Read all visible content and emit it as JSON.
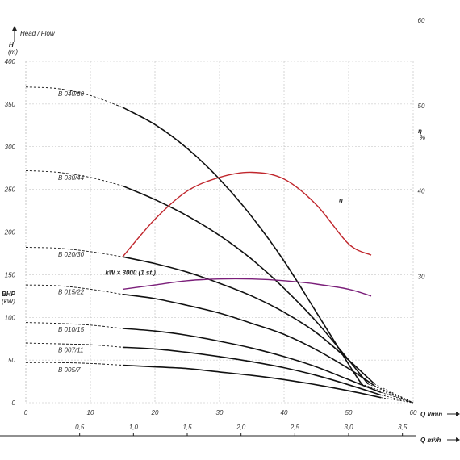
{
  "chart_data": {
    "type": "line",
    "title": "Head / Flow",
    "y_axis": {
      "label": "H",
      "unit": "(m)",
      "ylim": [
        0,
        400
      ],
      "ticks": [
        "0",
        "50",
        "100",
        "150",
        "200",
        "250",
        "300",
        "350",
        "400"
      ],
      "secondary_label": "BHP",
      "secondary_unit": "(kW)"
    },
    "x_axis_primary": {
      "label": "Q l/min",
      "xlim": [
        0,
        60
      ],
      "ticks": [
        "0",
        "10",
        "20",
        "30",
        "40",
        "50",
        "60"
      ]
    },
    "x_axis_secondary": {
      "label": "Q m³/h",
      "ticks": [
        "0,5",
        "1,0",
        "1,5",
        "2,0",
        "2,5",
        "3,0",
        "3,5"
      ]
    },
    "y_axis_right": {
      "label": "η",
      "unit": "%",
      "ticks": [
        "30",
        "40",
        "50",
        "60"
      ]
    },
    "grid": true,
    "series": [
      {
        "name": "B 040/60",
        "color": "#111111",
        "dashed": [
          [
            0,
            370
          ],
          [
            5,
            368
          ],
          [
            10,
            360
          ],
          [
            15,
            346
          ]
        ],
        "solid": [
          [
            15,
            346
          ],
          [
            20,
            326
          ],
          [
            25,
            298
          ],
          [
            30,
            262
          ],
          [
            35,
            218
          ],
          [
            40,
            166
          ],
          [
            45,
            106
          ],
          [
            50,
            45
          ],
          [
            52,
            22
          ]
        ]
      },
      {
        "name": "B 030/44",
        "color": "#111111",
        "dashed": [
          [
            0,
            272
          ],
          [
            5,
            270
          ],
          [
            10,
            264
          ],
          [
            15,
            254
          ]
        ],
        "solid": [
          [
            15,
            254
          ],
          [
            20,
            238
          ],
          [
            25,
            219
          ],
          [
            30,
            196
          ],
          [
            35,
            168
          ],
          [
            40,
            134
          ],
          [
            45,
            95
          ],
          [
            50,
            50
          ],
          [
            53,
            22
          ]
        ]
      },
      {
        "name": "B 020/30",
        "color": "#111111",
        "dashed": [
          [
            0,
            182
          ],
          [
            5,
            181
          ],
          [
            10,
            177
          ],
          [
            15,
            171
          ]
        ],
        "solid": [
          [
            15,
            171
          ],
          [
            20,
            163
          ],
          [
            25,
            153
          ],
          [
            30,
            140
          ],
          [
            35,
            125
          ],
          [
            40,
            106
          ],
          [
            45,
            82
          ],
          [
            50,
            50
          ],
          [
            54,
            22
          ]
        ]
      },
      {
        "name": "B 015/22",
        "color": "#111111",
        "dashed": [
          [
            0,
            138
          ],
          [
            5,
            137
          ],
          [
            10,
            133
          ],
          [
            15,
            127
          ]
        ],
        "solid": [
          [
            15,
            127
          ],
          [
            20,
            122
          ],
          [
            25,
            114
          ],
          [
            30,
            105
          ],
          [
            35,
            93
          ],
          [
            40,
            80
          ],
          [
            45,
            62
          ],
          [
            50,
            40
          ],
          [
            54,
            20
          ]
        ]
      },
      {
        "name": "B 010/15",
        "color": "#111111",
        "dashed": [
          [
            0,
            94
          ],
          [
            5,
            93
          ],
          [
            10,
            91
          ],
          [
            15,
            87
          ]
        ],
        "solid": [
          [
            15,
            87
          ],
          [
            20,
            84
          ],
          [
            25,
            79
          ],
          [
            30,
            72
          ],
          [
            35,
            64
          ],
          [
            40,
            54
          ],
          [
            45,
            42
          ],
          [
            50,
            27
          ],
          [
            55,
            12
          ]
        ]
      },
      {
        "name": "B 007/11",
        "color": "#111111",
        "dashed": [
          [
            0,
            70
          ],
          [
            5,
            69
          ],
          [
            10,
            68
          ],
          [
            15,
            65
          ]
        ],
        "solid": [
          [
            15,
            65
          ],
          [
            20,
            63
          ],
          [
            25,
            59
          ],
          [
            30,
            54
          ],
          [
            35,
            48
          ],
          [
            40,
            41
          ],
          [
            45,
            32
          ],
          [
            50,
            21
          ],
          [
            55,
            9
          ]
        ]
      },
      {
        "name": "B 005/7",
        "color": "#111111",
        "dashed": [
          [
            0,
            47
          ],
          [
            5,
            47
          ],
          [
            10,
            46
          ],
          [
            15,
            44
          ]
        ],
        "solid": [
          [
            15,
            44
          ],
          [
            20,
            42
          ],
          [
            25,
            40
          ],
          [
            30,
            36
          ],
          [
            35,
            32
          ],
          [
            40,
            27
          ],
          [
            45,
            21
          ],
          [
            50,
            14
          ],
          [
            55,
            6
          ]
        ]
      },
      {
        "name": "η",
        "color": "#c0272d",
        "solid": [
          [
            15,
            171
          ],
          [
            20,
            215
          ],
          [
            25,
            248
          ],
          [
            30,
            264
          ],
          [
            35,
            270
          ],
          [
            40,
            262
          ],
          [
            45,
            232
          ],
          [
            50,
            186
          ],
          [
            53.5,
            173
          ]
        ]
      },
      {
        "name": "kW × 3000 (1 st.)",
        "color": "#7b1f7a",
        "solid": [
          [
            15,
            133
          ],
          [
            20,
            138
          ],
          [
            25,
            143
          ],
          [
            30,
            145
          ],
          [
            35,
            145
          ],
          [
            40,
            143
          ],
          [
            45,
            139
          ],
          [
            50,
            133
          ],
          [
            53.5,
            125
          ]
        ]
      }
    ],
    "convergence": [
      [
        60,
        0
      ],
      [
        60,
        12
      ]
    ]
  }
}
